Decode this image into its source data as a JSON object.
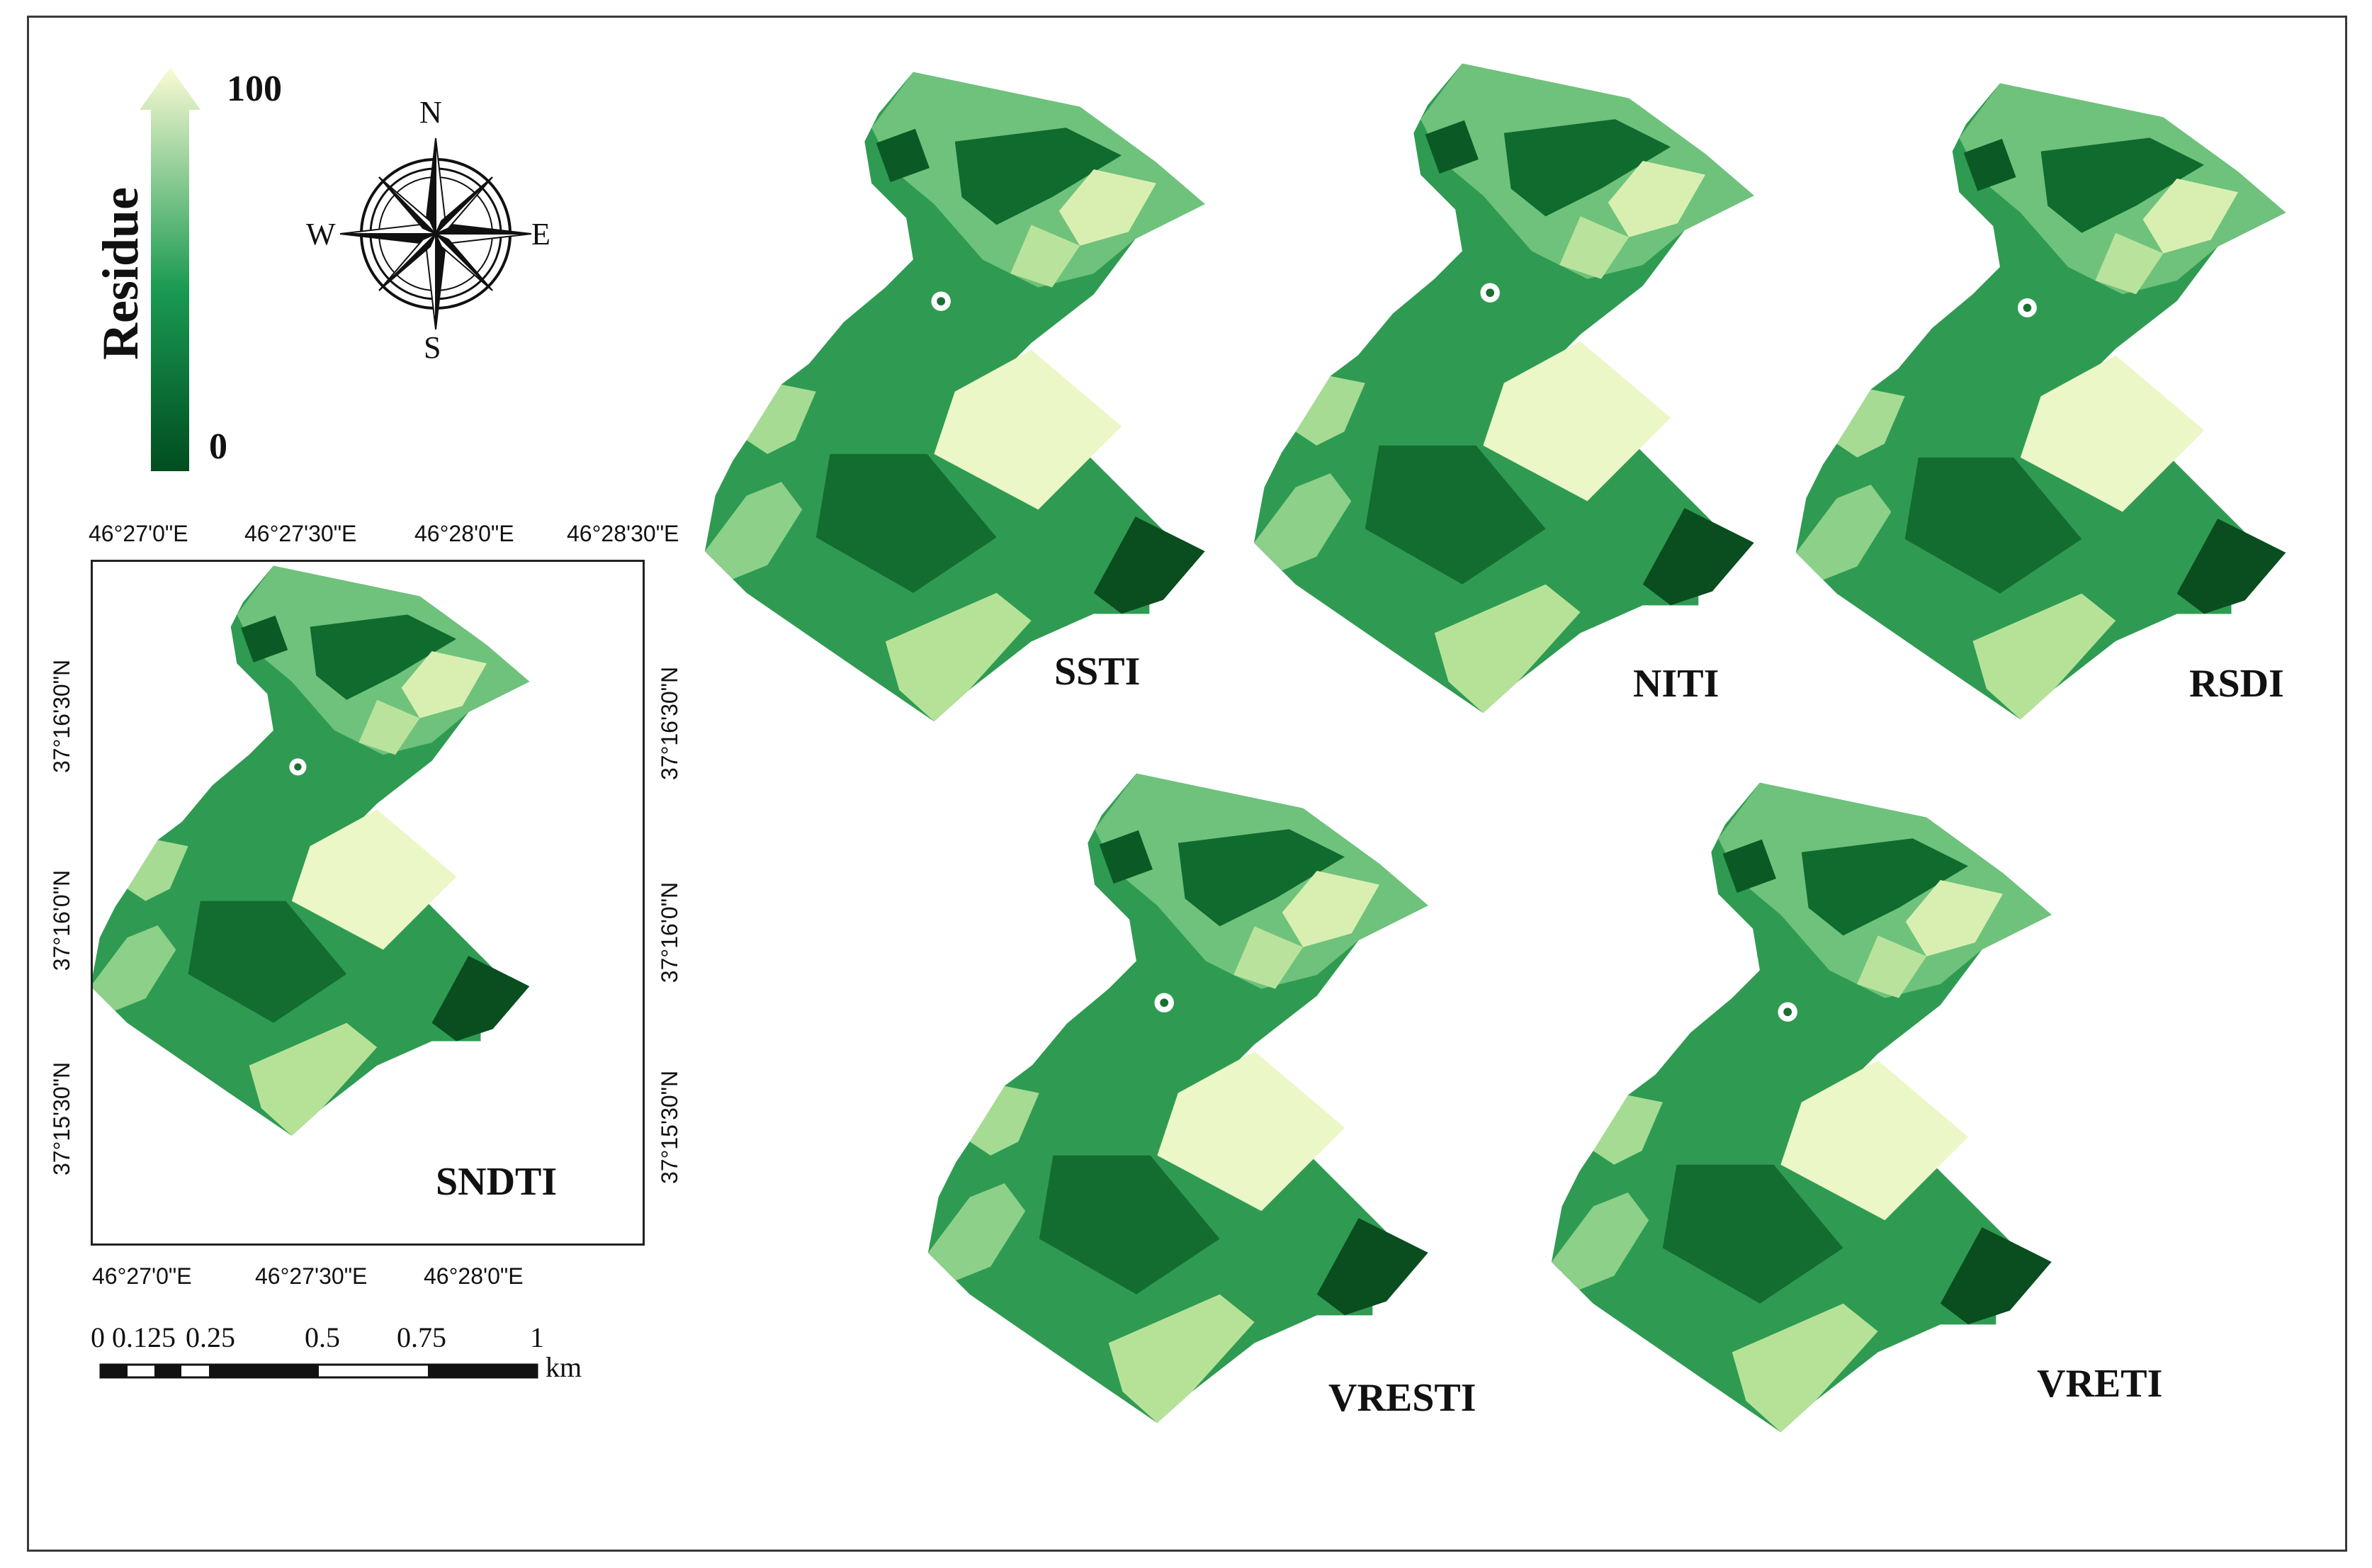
{
  "legend": {
    "title": "Residue",
    "max_label": "100",
    "min_label": "0",
    "color_high": "#fbfbd4",
    "color_mid": "#1a9a52",
    "color_low": "#004d1f"
  },
  "north_arrow": {
    "n": "N",
    "s": "S",
    "e": "E",
    "w": "W"
  },
  "maps": [
    {
      "id": "sndti",
      "label": "SNDTI"
    },
    {
      "id": "ssti",
      "label": "SSTI"
    },
    {
      "id": "niti",
      "label": "NITI"
    },
    {
      "id": "rsdi",
      "label": "RSDI"
    },
    {
      "id": "vresti",
      "label": "VRESTI"
    },
    {
      "id": "vreti",
      "label": "VRETI"
    }
  ],
  "graticule": {
    "top_labels": [
      "46°27'0\"E",
      "46°27'30\"E",
      "46°28'0\"E",
      "46°28'30\"E"
    ],
    "bottom_labels": [
      "46°27'0\"E",
      "46°27'30\"E",
      "46°28'0\"E"
    ],
    "left_labels": [
      "37°16'30\"N",
      "37°16'0\"N",
      "37°15'30\"N"
    ],
    "right_labels": [
      "37°16'30\"N",
      "37°16'0\"N",
      "37°15'30\"N"
    ]
  },
  "scale_bar": {
    "ticks": [
      "0",
      "0.125",
      "0.25",
      "0.5",
      "0.75",
      "1"
    ],
    "unit": "km"
  }
}
